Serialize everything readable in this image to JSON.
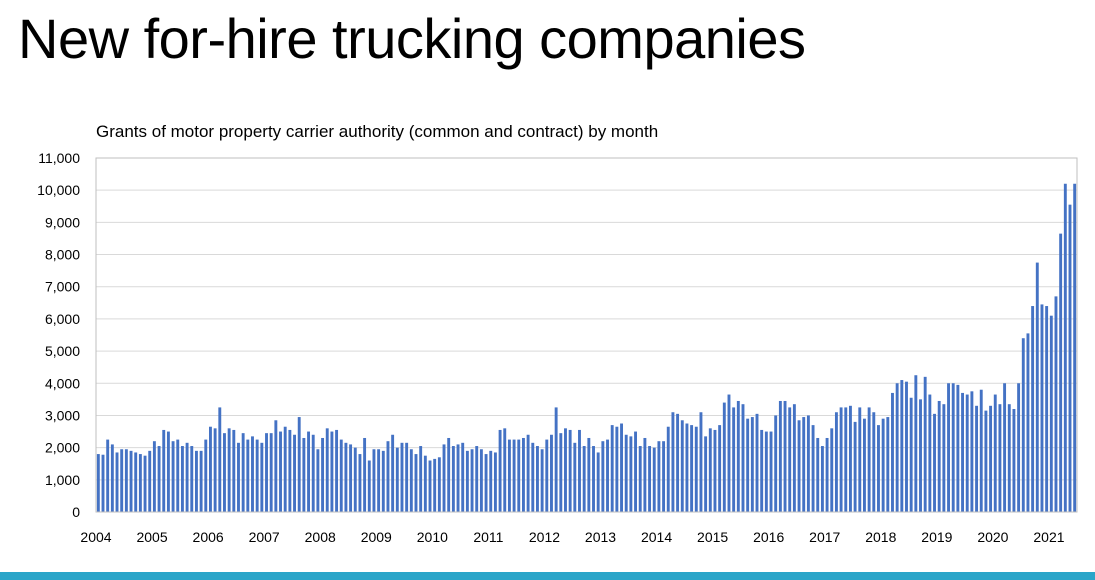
{
  "slide": {
    "title": "New for-hire trucking companies"
  },
  "colors": {
    "bar": "#4472c4",
    "grid": "#d9d9d9",
    "accent_bar": "#2aa5c9"
  },
  "chart_data": {
    "type": "bar",
    "title": "Grants of motor property carrier authority (common and contract) by month",
    "xlabel": "",
    "ylabel": "",
    "ylim": [
      0,
      11000
    ],
    "yticks": [
      "0",
      "1,000",
      "2,000",
      "3,000",
      "4,000",
      "5,000",
      "6,000",
      "7,000",
      "8,000",
      "9,000",
      "10,000",
      "11,000"
    ],
    "xticks": [
      "2004",
      "2005",
      "2006",
      "2007",
      "2008",
      "2009",
      "2010",
      "2011",
      "2012",
      "2013",
      "2014",
      "2015",
      "2016",
      "2017",
      "2018",
      "2019",
      "2020",
      "2021"
    ],
    "grid": true,
    "legend": "none",
    "start": "2004-01",
    "frequency": "monthly",
    "values": [
      1800,
      1780,
      2250,
      2100,
      1850,
      1950,
      1950,
      1900,
      1850,
      1800,
      1750,
      1900,
      2200,
      2050,
      2550,
      2500,
      2200,
      2250,
      2050,
      2150,
      2050,
      1900,
      1900,
      2250,
      2650,
      2600,
      3250,
      2450,
      2600,
      2550,
      2150,
      2450,
      2250,
      2350,
      2250,
      2150,
      2450,
      2450,
      2850,
      2500,
      2650,
      2550,
      2400,
      2950,
      2300,
      2500,
      2400,
      1950,
      2300,
      2600,
      2500,
      2550,
      2250,
      2150,
      2100,
      2000,
      1800,
      2300,
      1600,
      1950,
      1950,
      1900,
      2200,
      2400,
      2000,
      2150,
      2150,
      1950,
      1800,
      2050,
      1750,
      1600,
      1650,
      1700,
      2100,
      2300,
      2050,
      2100,
      2150,
      1900,
      1950,
      2050,
      1950,
      1800,
      1900,
      1850,
      2550,
      2600,
      2250,
      2250,
      2250,
      2300,
      2400,
      2150,
      2050,
      1950,
      2250,
      2400,
      3250,
      2450,
      2600,
      2550,
      2150,
      2550,
      2050,
      2300,
      2050,
      1850,
      2200,
      2250,
      2700,
      2650,
      2750,
      2400,
      2350,
      2500,
      2050,
      2300,
      2050,
      2000,
      2200,
      2200,
      2650,
      3100,
      3050,
      2850,
      2750,
      2700,
      2650,
      3100,
      2350,
      2600,
      2550,
      2700,
      3400,
      3650,
      3250,
      3450,
      3350,
      2900,
      2950,
      3050,
      2550,
      2500,
      2500,
      3000,
      3450,
      3450,
      3250,
      3350,
      2850,
      2950,
      3000,
      2700,
      2300,
      2050,
      2300,
      2600,
      3100,
      3250,
      3250,
      3300,
      2800,
      3250,
      2900,
      3250,
      3100,
      2700,
      2900,
      2950,
      3700,
      4000,
      4100,
      4050,
      3550,
      4250,
      3500,
      4200,
      3650,
      3050,
      3450,
      3350,
      4000,
      4000,
      3950,
      3700,
      3650,
      3750,
      3300,
      3800,
      3150,
      3300,
      3650,
      3350,
      4000,
      3350,
      3200,
      4000,
      5400,
      5550,
      6400,
      7750,
      6450,
      6400,
      6100,
      6700,
      8650,
      10200,
      9550,
      10200
    ]
  }
}
